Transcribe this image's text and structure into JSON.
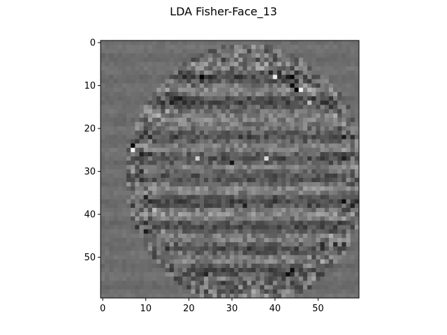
{
  "chart_data": {
    "type": "heatmap",
    "title": "LDA Fisher-Face_13",
    "xlabel": "",
    "ylabel": "",
    "colormap": "gray",
    "image_size": [
      60,
      60
    ],
    "xlim": [
      -0.5,
      59.5
    ],
    "ylim": [
      59.5,
      -0.5
    ],
    "x_ticks": [
      0,
      10,
      20,
      30,
      40,
      50
    ],
    "y_ticks": [
      0,
      10,
      20,
      30,
      40,
      50
    ],
    "x_tick_labels": [
      "0",
      "10",
      "20",
      "30",
      "40",
      "50"
    ],
    "y_tick_labels": [
      "0",
      "10",
      "20",
      "30",
      "40",
      "50"
    ],
    "grid": false,
    "background_value": 0.43,
    "face_ellipse": {
      "center_x": 33.5,
      "center_y": 31,
      "radius_x": 27.5,
      "radius_y": 30
    },
    "dark_bands_rows": [
      8,
      14,
      22,
      27,
      31,
      37,
      43,
      48,
      53
    ],
    "light_bands_rows": [
      5,
      11,
      18,
      24,
      29,
      34,
      40,
      46,
      51
    ],
    "bright_spots": [
      {
        "x": 40,
        "y": 8,
        "value": 0.92
      },
      {
        "x": 46,
        "y": 11,
        "value": 0.95
      },
      {
        "x": 7,
        "y": 25,
        "value": 0.95
      },
      {
        "x": 38,
        "y": 27,
        "value": 0.85
      },
      {
        "x": 22,
        "y": 27,
        "value": 0.8
      },
      {
        "x": 48,
        "y": 14,
        "value": 0.75
      }
    ],
    "dark_spots": [
      {
        "x": 45,
        "y": 11,
        "value": 0.02
      },
      {
        "x": 44,
        "y": 10,
        "value": 0.05
      },
      {
        "x": 7,
        "y": 24,
        "value": 0.03
      },
      {
        "x": 30,
        "y": 28,
        "value": 0.08
      },
      {
        "x": 44,
        "y": 53,
        "value": 0.05
      },
      {
        "x": 43,
        "y": 54,
        "value": 0.06
      },
      {
        "x": 10,
        "y": 44,
        "value": 0.1
      },
      {
        "x": 33,
        "y": 38,
        "value": 0.12
      }
    ]
  }
}
